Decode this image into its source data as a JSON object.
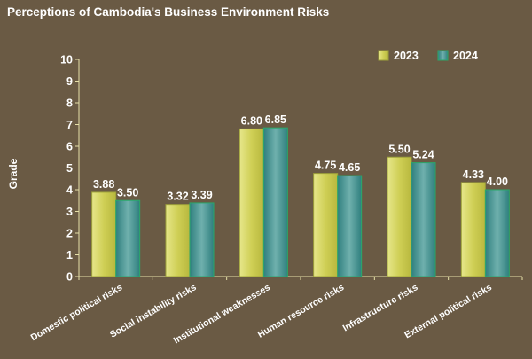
{
  "chart_data": {
    "type": "bar",
    "title": "Perceptions of Cambodia's Business Environment Risks",
    "ylabel": "Grade",
    "xlabel": "",
    "ylim": [
      0,
      10
    ],
    "yticks": [
      0,
      1,
      2,
      3,
      4,
      5,
      6,
      7,
      8,
      9,
      10
    ],
    "grid": false,
    "legend_position": "top-right",
    "categories": [
      "Domestic political risks",
      "Social instability risks",
      "Institutional weaknesses",
      "Human resource risks",
      "Infrastructure risks",
      "External political risks"
    ],
    "series": [
      {
        "name": "2023",
        "values": [
          3.88,
          3.32,
          6.8,
          4.75,
          5.5,
          4.33
        ],
        "labels": [
          "3.88",
          "3.32",
          "6.80",
          "4.75",
          "5.50",
          "4.33"
        ],
        "color": "#d8d868"
      },
      {
        "name": "2024",
        "values": [
          3.5,
          3.39,
          6.85,
          4.65,
          5.24,
          4.0
        ],
        "labels": [
          "3.50",
          "3.39",
          "6.85",
          "4.65",
          "5.24",
          "4.00"
        ],
        "color": "#4a9a96"
      }
    ]
  }
}
